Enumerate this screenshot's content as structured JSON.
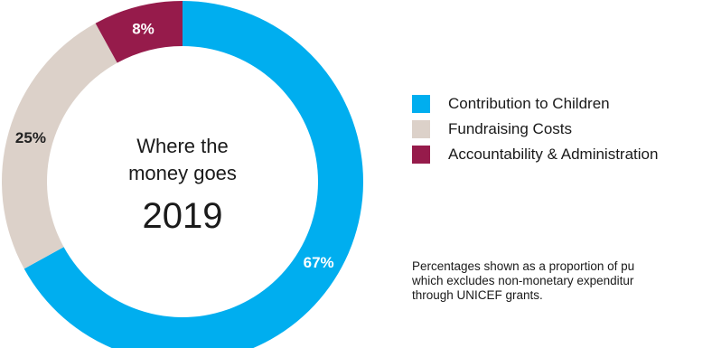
{
  "chart_data": {
    "type": "pie",
    "donut": true,
    "title_lines": [
      "Where the",
      "money goes"
    ],
    "year": "2019",
    "categories": [
      "Contribution to Children",
      "Fundraising Costs",
      "Accountability & Administration"
    ],
    "values": [
      67,
      25,
      8
    ],
    "value_labels": [
      "67%",
      "25%",
      "8%"
    ],
    "colors": [
      "#00aeef",
      "#dcd1c9",
      "#961b4b"
    ],
    "legend_position": "right"
  },
  "note": {
    "lines": [
      "Percentages shown as a proportion of pu",
      "which excludes non-monetary expenditur",
      "through UNICEF grants."
    ]
  }
}
